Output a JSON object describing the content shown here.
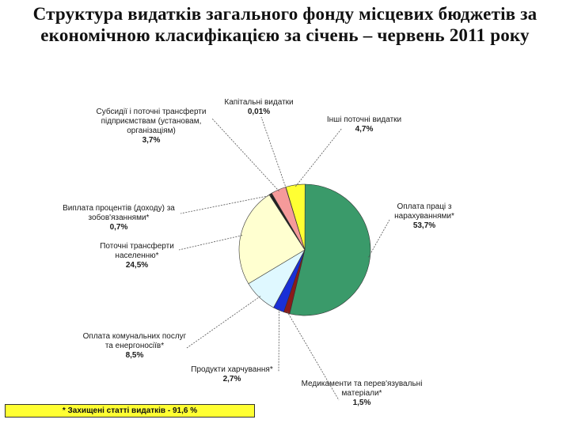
{
  "chart_data": {
    "type": "pie",
    "title_lines": [
      "Структура видатків загального фонду місцевих бюджетів за",
      "економічною класифікацією за січень – червень 2011 року"
    ],
    "slices": [
      {
        "label": "Оплата праці з нарахуваннями*",
        "value": 53.7,
        "display": "53,7%",
        "color": "#3a9a6a"
      },
      {
        "label": "Медикаменти та перев'язувальні матеріали*",
        "value": 1.5,
        "display": "1,5%",
        "color": "#8b1a1a"
      },
      {
        "label": "Продукти харчування*",
        "value": 2.7,
        "display": "2,7%",
        "color": "#1a2fd6"
      },
      {
        "label": "Оплата комунальних послуг та енергоносіїв*",
        "value": 8.5,
        "display": "8,5%",
        "color": "#dff8ff"
      },
      {
        "label": "Поточні трансферти населенню*",
        "value": 24.5,
        "display": "24,5%",
        "color": "#ffffd0"
      },
      {
        "label": "Виплата процентів (доходу) за зобов'язаннями*",
        "value": 0.7,
        "display": "0,7%",
        "color": "#222222"
      },
      {
        "label": "Субсидії і поточні трансферти підприємствам (установам, організаціям)",
        "value": 3.7,
        "display": "3,7%",
        "color": "#f59a9a"
      },
      {
        "label": "Капітальні видатки",
        "value": 0.01,
        "display": "0,01%",
        "color": "#bbbbbb"
      },
      {
        "label": "Інші поточні видатки",
        "value": 4.7,
        "display": "4,7%",
        "color": "#ffff33"
      }
    ],
    "footnote": "* Захищені статті видатків - 91,6 %"
  }
}
